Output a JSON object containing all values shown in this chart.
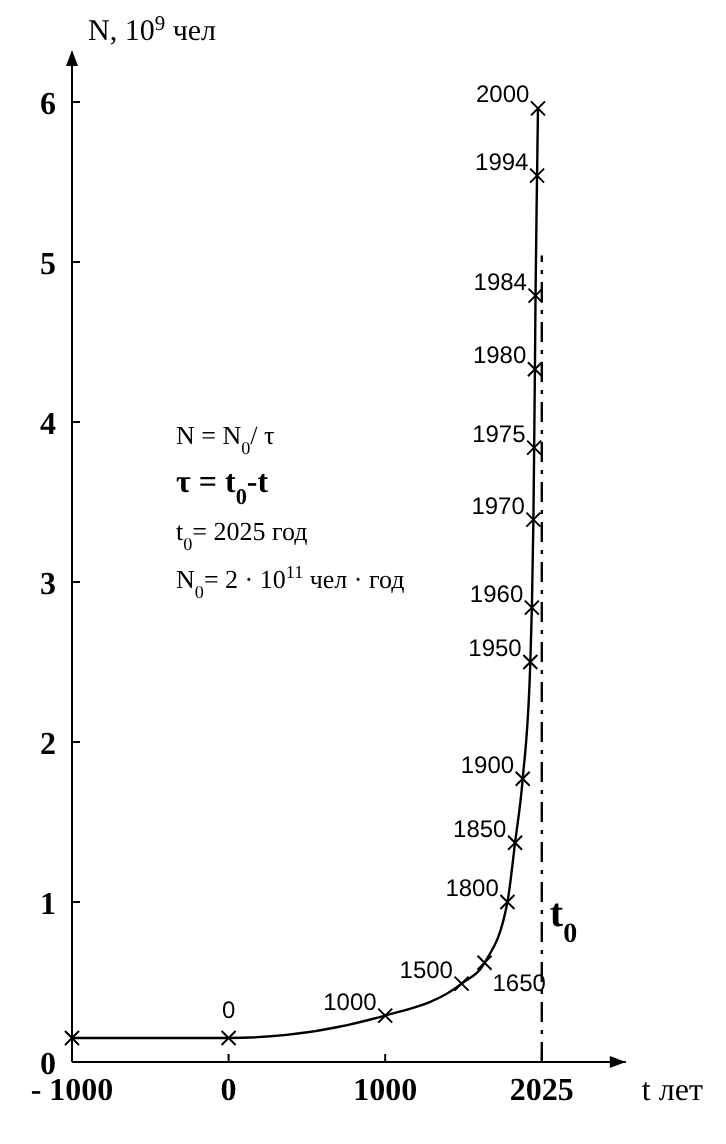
{
  "chart_data": {
    "type": "line",
    "xlabel": "t лет",
    "ylabel": "N, 10$^{9}$ чел",
    "xlim": [
      -1000,
      2575
    ],
    "ylim": [
      0,
      6.3
    ],
    "xticks": [
      {
        "value": -1000,
        "label": "- 1000"
      },
      0,
      1000,
      2025
    ],
    "yticks": [
      0,
      1,
      2,
      3,
      4,
      5,
      6
    ],
    "marker": "cross",
    "line_style": "solid",
    "series": [
      {
        "color": "#000000",
        "x": [
          -1000,
          0,
          1000,
          1500,
          1650,
          1800,
          1850,
          1900,
          1950,
          1960,
          1970,
          1975,
          1980,
          1984,
          1994,
          2000
        ],
        "values": [
          0.15,
          0.15,
          0.29,
          0.49,
          0.62,
          1.0,
          1.37,
          1.77,
          2.5,
          2.84,
          3.39,
          3.84,
          4.33,
          4.79,
          5.54,
          5.96
        ]
      }
    ],
    "ref_lines": [
      {
        "axis": "x",
        "value": 2025,
        "label": "t$_{0}$",
        "line_style": "dashed"
      }
    ],
    "annotations": [
      {
        "text": "0",
        "x": 0,
        "y": 0.15
      },
      {
        "text": "1000",
        "x": 1000,
        "y": 0.29
      },
      {
        "text": "1500",
        "x": 1500,
        "y": 0.49
      },
      {
        "text": "1650",
        "x": 1650,
        "y": 0.62
      },
      {
        "text": "1800",
        "x": 1800,
        "y": 1.0
      },
      {
        "text": "1850",
        "x": 1850,
        "y": 1.37
      },
      {
        "text": "1900",
        "x": 1900,
        "y": 1.77
      },
      {
        "text": "1950",
        "x": 1950,
        "y": 2.5
      },
      {
        "text": "1960",
        "x": 1960,
        "y": 2.84
      },
      {
        "text": "1970",
        "x": 1970,
        "y": 3.39
      },
      {
        "text": "1975",
        "x": 1975,
        "y": 3.84
      },
      {
        "text": "1980",
        "x": 1980,
        "y": 4.33
      },
      {
        "text": "1984",
        "x": 1984,
        "y": 4.79
      },
      {
        "text": "1994",
        "x": 1994,
        "y": 5.54
      },
      {
        "text": "2000",
        "x": 2000,
        "y": 5.96
      },
      "N = N$_{0}$/ τ",
      "τ = t$_{0}$-t",
      "t$_{0}$= 2025 год",
      "N$_{0}$= 2 · 10$^{11}$ чел · год"
    ]
  }
}
